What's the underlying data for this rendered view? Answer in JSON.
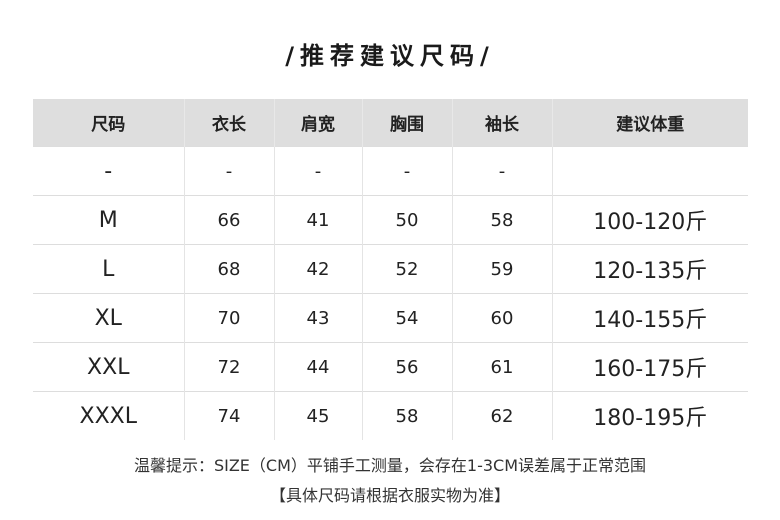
{
  "title": "/推荐建议尺码/",
  "table": {
    "headers": [
      "尺码",
      "衣长",
      "肩宽",
      "胸围",
      "袖长",
      "建议体重"
    ],
    "rows": [
      [
        "-",
        "-",
        "-",
        "-",
        "-",
        ""
      ],
      [
        "M",
        "66",
        "41",
        "50",
        "58",
        "100-120斤"
      ],
      [
        "L",
        "68",
        "42",
        "52",
        "59",
        "120-135斤"
      ],
      [
        "XL",
        "70",
        "43",
        "54",
        "60",
        "140-155斤"
      ],
      [
        "XXL",
        "72",
        "44",
        "56",
        "61",
        "160-175斤"
      ],
      [
        "XXXL",
        "74",
        "45",
        "58",
        "62",
        "180-195斤"
      ]
    ]
  },
  "notes": {
    "line1": "温馨提示：SIZE（CM）平铺手工测量，会存在1-3CM误差属于正常范围",
    "line2": "【具体尺码请根据衣服实物为准】"
  }
}
